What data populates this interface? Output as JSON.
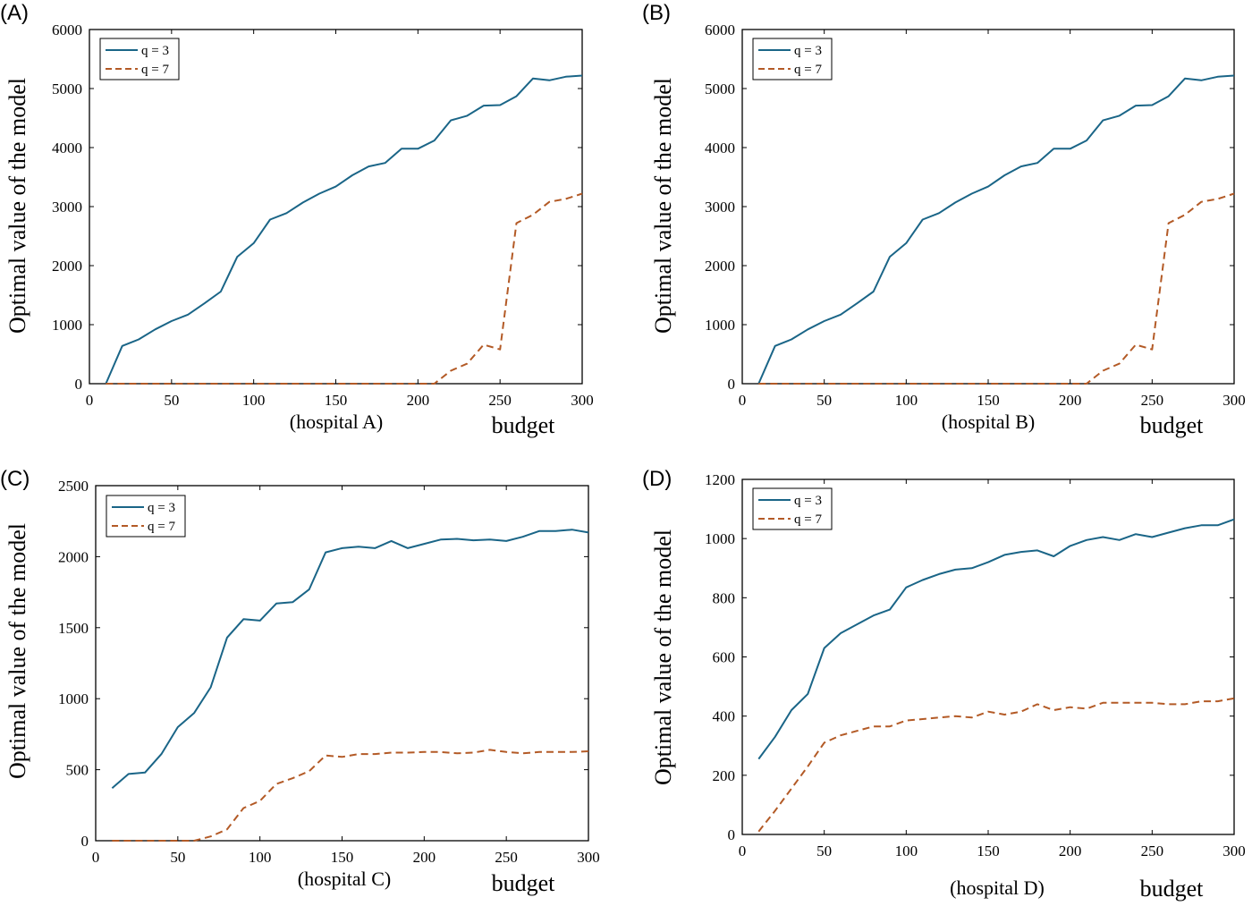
{
  "chart_data": [
    {
      "type": "line",
      "panel_label": "(A)",
      "subtitle": "(hospital A)",
      "xlabel": "budget",
      "ylabel": "Optimal value of  the model",
      "xlim": [
        0,
        300
      ],
      "ylim": [
        0,
        6000
      ],
      "xticks": [
        0,
        50,
        100,
        150,
        200,
        250,
        300
      ],
      "yticks": [
        0,
        1000,
        2000,
        3000,
        4000,
        5000,
        6000
      ],
      "legend_position": "top-left",
      "x": [
        10,
        20,
        30,
        40,
        50,
        60,
        70,
        80,
        90,
        100,
        110,
        120,
        130,
        140,
        150,
        160,
        170,
        180,
        190,
        200,
        210,
        220,
        230,
        240,
        250,
        260,
        270,
        280,
        290,
        300
      ],
      "series": [
        {
          "name": "q = 3",
          "color": "#1a6587",
          "dash": "solid",
          "values": [
            0,
            640,
            750,
            920,
            1060,
            1170,
            1360,
            1560,
            2150,
            2380,
            2780,
            2890,
            3070,
            3220,
            3340,
            3530,
            3680,
            3740,
            3980,
            3980,
            4120,
            4460,
            4540,
            4710,
            4720,
            4870,
            5170,
            5140,
            5200,
            5220
          ]
        },
        {
          "name": "q = 7",
          "color": "#b35a26",
          "dash": "dashed",
          "values": [
            0,
            0,
            0,
            0,
            0,
            0,
            0,
            0,
            0,
            0,
            0,
            0,
            0,
            0,
            0,
            0,
            0,
            0,
            0,
            0,
            0,
            220,
            340,
            660,
            580,
            2720,
            2860,
            3080,
            3130,
            3220
          ]
        }
      ]
    },
    {
      "type": "line",
      "panel_label": "(B)",
      "subtitle": "(hospital B)",
      "xlabel": "budget",
      "ylabel": "Optimal value of  the model",
      "xlim": [
        0,
        300
      ],
      "ylim": [
        0,
        6000
      ],
      "xticks": [
        0,
        50,
        100,
        150,
        200,
        250,
        300
      ],
      "yticks": [
        0,
        1000,
        2000,
        3000,
        4000,
        5000,
        6000
      ],
      "legend_position": "top-left",
      "x": [
        10,
        20,
        30,
        40,
        50,
        60,
        70,
        80,
        90,
        100,
        110,
        120,
        130,
        140,
        150,
        160,
        170,
        180,
        190,
        200,
        210,
        220,
        230,
        240,
        250,
        260,
        270,
        280,
        290,
        300
      ],
      "series": [
        {
          "name": "q = 3",
          "color": "#1a6587",
          "dash": "solid",
          "values": [
            0,
            640,
            750,
            920,
            1060,
            1170,
            1360,
            1560,
            2150,
            2380,
            2780,
            2890,
            3070,
            3220,
            3340,
            3530,
            3680,
            3740,
            3980,
            3980,
            4120,
            4460,
            4540,
            4710,
            4720,
            4870,
            5170,
            5140,
            5200,
            5220
          ]
        },
        {
          "name": "q = 7",
          "color": "#b35a26",
          "dash": "dashed",
          "values": [
            0,
            0,
            0,
            0,
            0,
            0,
            0,
            0,
            0,
            0,
            0,
            0,
            0,
            0,
            0,
            0,
            0,
            0,
            0,
            0,
            0,
            220,
            340,
            660,
            580,
            2720,
            2860,
            3080,
            3130,
            3220
          ]
        }
      ]
    },
    {
      "type": "line",
      "panel_label": "(C)",
      "subtitle": "(hospital C)",
      "xlabel": "budget",
      "ylabel": "Optimal value of  the model",
      "xlim": [
        0,
        300
      ],
      "ylim": [
        0,
        2500
      ],
      "xticks": [
        0,
        50,
        100,
        150,
        200,
        250,
        300
      ],
      "yticks": [
        0,
        500,
        1000,
        1500,
        2000,
        2500
      ],
      "legend_position": "top-left",
      "x": [
        10,
        20,
        30,
        40,
        50,
        60,
        70,
        80,
        90,
        100,
        110,
        120,
        130,
        140,
        150,
        160,
        170,
        180,
        190,
        200,
        210,
        220,
        230,
        240,
        250,
        260,
        270,
        280,
        290,
        300
      ],
      "series": [
        {
          "name": "q = 3",
          "color": "#1a6587",
          "dash": "solid",
          "values": [
            370,
            470,
            480,
            610,
            800,
            900,
            1080,
            1430,
            1560,
            1550,
            1670,
            1680,
            1770,
            2030,
            2060,
            2070,
            2060,
            2110,
            2060,
            2090,
            2120,
            2125,
            2115,
            2120,
            2110,
            2140,
            2180,
            2180,
            2190,
            2170
          ]
        },
        {
          "name": "q = 7",
          "color": "#b35a26",
          "dash": "dashed",
          "values": [
            0,
            0,
            0,
            0,
            0,
            0,
            30,
            80,
            230,
            280,
            400,
            440,
            490,
            600,
            590,
            610,
            610,
            620,
            620,
            625,
            625,
            615,
            620,
            640,
            625,
            615,
            625,
            625,
            625,
            630
          ]
        }
      ]
    },
    {
      "type": "line",
      "panel_label": "(D)",
      "subtitle": "(hospital D)",
      "xlabel": "budget",
      "ylabel": "Optimal value of  the model",
      "xlim": [
        0,
        300
      ],
      "ylim": [
        0,
        1200
      ],
      "xticks": [
        0,
        50,
        100,
        150,
        200,
        250,
        300
      ],
      "yticks": [
        0,
        200,
        400,
        600,
        800,
        1000,
        1200
      ],
      "legend_position": "top-left",
      "x": [
        10,
        20,
        30,
        40,
        50,
        60,
        70,
        80,
        90,
        100,
        110,
        120,
        130,
        140,
        150,
        160,
        170,
        180,
        190,
        200,
        210,
        220,
        230,
        240,
        250,
        260,
        270,
        280,
        290,
        300
      ],
      "series": [
        {
          "name": "q = 3",
          "color": "#1a6587",
          "dash": "solid",
          "values": [
            255,
            330,
            420,
            475,
            630,
            680,
            710,
            740,
            760,
            835,
            860,
            880,
            895,
            900,
            920,
            945,
            955,
            960,
            940,
            975,
            995,
            1005,
            995,
            1015,
            1005,
            1020,
            1035,
            1045,
            1045,
            1065
          ]
        },
        {
          "name": "q = 7",
          "color": "#b35a26",
          "dash": "dashed",
          "values": [
            10,
            80,
            155,
            230,
            310,
            335,
            350,
            365,
            365,
            385,
            390,
            395,
            400,
            395,
            415,
            405,
            415,
            440,
            420,
            430,
            425,
            445,
            445,
            445,
            445,
            440,
            440,
            450,
            450,
            460
          ]
        }
      ]
    }
  ]
}
